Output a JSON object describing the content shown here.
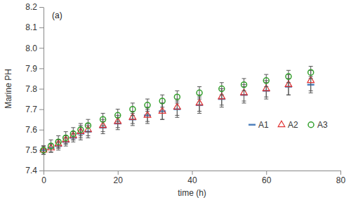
{
  "chart_data": {
    "type": "scatter",
    "annotation": "(a)",
    "x_label": "time (h)",
    "y_label": "Marine PH",
    "x": [
      0,
      2,
      4,
      6,
      8,
      10,
      12,
      16,
      20,
      24,
      28,
      32,
      36,
      42,
      48,
      54,
      60,
      66,
      72
    ],
    "series": [
      {
        "name": "A1",
        "color": "#4f81bd",
        "marker": "dash",
        "values": [
          7.5,
          7.51,
          7.52,
          7.54,
          7.56,
          7.58,
          7.59,
          7.61,
          7.63,
          7.65,
          7.67,
          7.69,
          7.7,
          7.72,
          7.75,
          7.77,
          7.79,
          7.81,
          7.82
        ],
        "errors": [
          0.02,
          0.02,
          0.02,
          0.02,
          0.02,
          0.03,
          0.03,
          0.03,
          0.03,
          0.03,
          0.03,
          0.04,
          0.04,
          0.04,
          0.04,
          0.04,
          0.04,
          0.04,
          0.04
        ]
      },
      {
        "name": "A2",
        "color": "#e03030",
        "marker": "triangle",
        "values": [
          7.5,
          7.51,
          7.53,
          7.55,
          7.57,
          7.59,
          7.6,
          7.62,
          7.64,
          7.66,
          7.67,
          7.69,
          7.71,
          7.73,
          7.76,
          7.78,
          7.8,
          7.82,
          7.84
        ],
        "errors": [
          0.02,
          0.02,
          0.02,
          0.02,
          0.02,
          0.03,
          0.03,
          0.03,
          0.03,
          0.03,
          0.04,
          0.04,
          0.04,
          0.04,
          0.04,
          0.04,
          0.04,
          0.05,
          0.05
        ]
      },
      {
        "name": "A3",
        "color": "#33a02c",
        "marker": "circle",
        "values": [
          7.5,
          7.52,
          7.54,
          7.56,
          7.58,
          7.6,
          7.62,
          7.65,
          7.67,
          7.7,
          7.72,
          7.74,
          7.76,
          7.78,
          7.8,
          7.82,
          7.84,
          7.86,
          7.88
        ],
        "errors": [
          0.02,
          0.03,
          0.03,
          0.03,
          0.03,
          0.03,
          0.03,
          0.03,
          0.03,
          0.03,
          0.03,
          0.03,
          0.03,
          0.03,
          0.03,
          0.03,
          0.03,
          0.03,
          0.03
        ]
      }
    ],
    "xlim": [
      0,
      80
    ],
    "xticks": [
      0,
      20,
      40,
      60,
      80
    ],
    "ylim": [
      7.4,
      8.2
    ],
    "yticks": [
      7.4,
      7.5,
      7.6,
      7.7,
      7.8,
      7.9,
      {
        "value": 8,
        "label": "8.0"
      },
      8.1,
      8.2
    ],
    "legend": "right",
    "grid": false
  }
}
